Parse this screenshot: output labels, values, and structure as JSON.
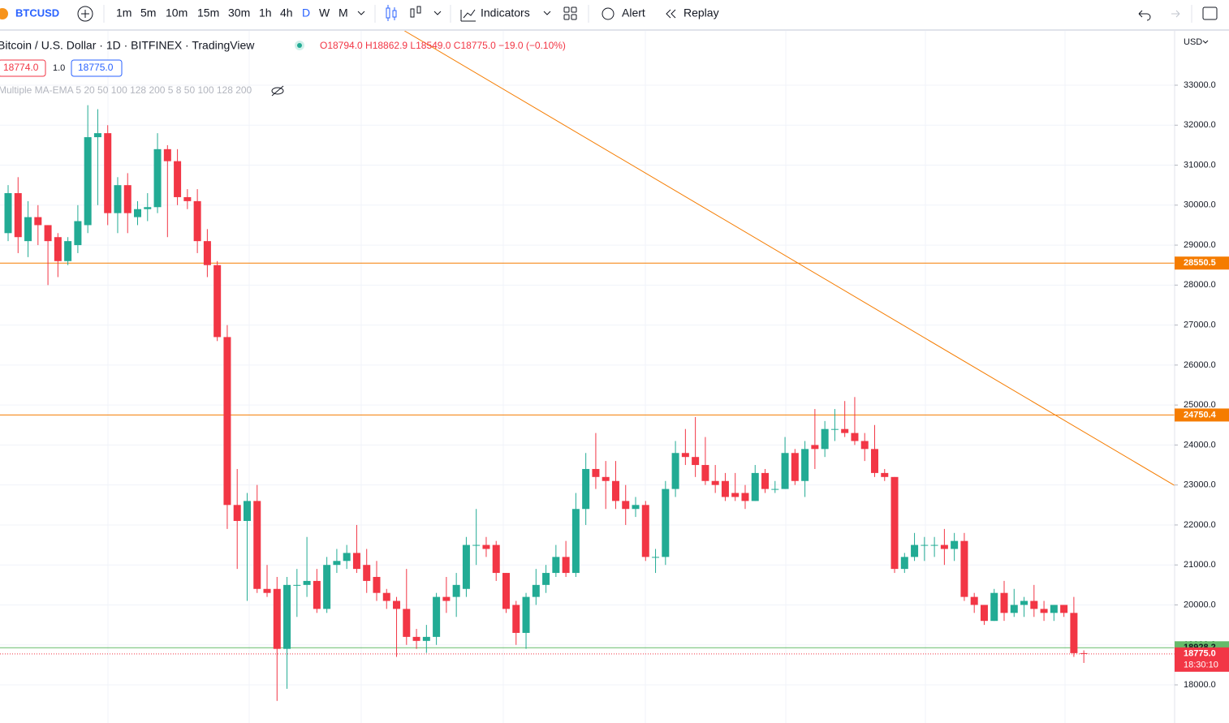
{
  "toolbar": {
    "symbol": "BTCUSD",
    "timeframes": [
      "1m",
      "5m",
      "10m",
      "15m",
      "30m",
      "1h",
      "4h",
      "D",
      "W",
      "M"
    ],
    "active_timeframe": "D",
    "indicators": "Indicators",
    "alert": "Alert",
    "replay": "Replay"
  },
  "chart_data": {
    "type": "candlestick",
    "title": "Bitcoin / U.S. Dollar · 1D · BITFINEX · TradingView",
    "ohlc_text": "O18794.0 H18862.9 L18549.0 C18775.0 −19.0 (−0.10%)",
    "bid": "18774.0",
    "spread": "1.0",
    "ask": "18775.0",
    "indicator": "Multiple MA-EMA 5 20 50 100 128 200 5 8 50 100 128 200",
    "currency": "USD",
    "up_color": "#22ab94",
    "down_color": "#f23645",
    "ylim": [
      17168,
      34360
    ],
    "yticks": [
      {
        "value": 18000,
        "label": "18000.0"
      },
      {
        "value": 19000,
        "label": "19000.0"
      },
      {
        "value": 20000,
        "label": "20000.0"
      },
      {
        "value": 21000,
        "label": "21000.0"
      },
      {
        "value": 22000,
        "label": "22000.0"
      },
      {
        "value": 23000,
        "label": "23000.0"
      },
      {
        "value": 24000,
        "label": "24000.0"
      },
      {
        "value": 25000,
        "label": "25000.0"
      },
      {
        "value": 26000,
        "label": "26000.0"
      },
      {
        "value": 27000,
        "label": "27000.0"
      },
      {
        "value": 28000,
        "label": "28000.0"
      },
      {
        "value": 29000,
        "label": "29000.0"
      },
      {
        "value": 30000,
        "label": "30000.0"
      },
      {
        "value": 31000,
        "label": "31000.0"
      },
      {
        "value": 32000,
        "label": "32000.0"
      },
      {
        "value": 33000,
        "label": "33000.0"
      }
    ],
    "grid": true,
    "levels": [
      {
        "value": 28550.5,
        "color": "#f57c00"
      },
      {
        "value": 24750.4,
        "color": "#f57c00"
      },
      {
        "value": 18928.2,
        "color": "#66bb6a"
      }
    ],
    "last_price": {
      "value": 18775,
      "label": "18775.0",
      "countdown": "18:30:10",
      "color": "#f23645"
    },
    "trendline": {
      "start": [
        39.8,
        34360
      ],
      "end": [
        117.1,
        22990
      ],
      "color": "#f57c00"
    },
    "ohlc": [
      [
        29300,
        30500,
        29100,
        30300
      ],
      [
        30300,
        30700,
        28800,
        29200
      ],
      [
        29100,
        30100,
        28700,
        29700
      ],
      [
        29700,
        30000,
        29000,
        29500
      ],
      [
        29500,
        29500,
        28000,
        29100
      ],
      [
        29200,
        29300,
        28200,
        28600
      ],
      [
        28600,
        29200,
        28500,
        29100
      ],
      [
        29000,
        30000,
        28800,
        29600
      ],
      [
        29500,
        32500,
        29300,
        31700
      ],
      [
        31700,
        32400,
        30000,
        31800
      ],
      [
        31800,
        32000,
        29500,
        29800
      ],
      [
        29800,
        30700,
        29300,
        30500
      ],
      [
        30500,
        30800,
        29300,
        29800
      ],
      [
        29700,
        30100,
        29500,
        29900
      ],
      [
        29900,
        30300,
        29600,
        29950
      ],
      [
        29950,
        31800,
        29800,
        31400
      ],
      [
        31400,
        31500,
        29200,
        31100
      ],
      [
        31100,
        31400,
        30000,
        30200
      ],
      [
        30200,
        30400,
        29900,
        30100
      ],
      [
        30100,
        30400,
        28800,
        29100
      ],
      [
        29100,
        29400,
        28200,
        28500
      ],
      [
        28500,
        28600,
        26600,
        26700
      ],
      [
        26700,
        27000,
        21900,
        22500
      ],
      [
        22500,
        23400,
        20900,
        22100
      ],
      [
        22100,
        22800,
        20100,
        22600
      ],
      [
        22600,
        23000,
        20300,
        20400
      ],
      [
        20400,
        21000,
        20200,
        20300
      ],
      [
        20400,
        20700,
        17600,
        18900
      ],
      [
        18900,
        20700,
        17900,
        20500
      ],
      [
        20500,
        20900,
        19700,
        20500
      ],
      [
        20500,
        21700,
        20200,
        20600
      ],
      [
        20600,
        20900,
        19800,
        19900
      ],
      [
        19900,
        21200,
        19800,
        21000
      ],
      [
        21000,
        21400,
        20800,
        21100
      ],
      [
        21100,
        21500,
        20900,
        21300
      ],
      [
        21300,
        22000,
        20800,
        20900
      ],
      [
        21000,
        21400,
        20300,
        20600
      ],
      [
        20700,
        21100,
        20100,
        20300
      ],
      [
        20300,
        20400,
        19900,
        20100
      ],
      [
        20100,
        20200,
        18700,
        19900
      ],
      [
        19900,
        20900,
        19000,
        19200
      ],
      [
        19200,
        19400,
        18900,
        19100
      ],
      [
        19100,
        19500,
        18800,
        19200
      ],
      [
        19200,
        20300,
        19000,
        20200
      ],
      [
        20200,
        20700,
        19800,
        20100
      ],
      [
        20200,
        20800,
        19700,
        20500
      ],
      [
        20400,
        21700,
        20200,
        21500
      ],
      [
        21500,
        22400,
        21000,
        21500
      ],
      [
        21500,
        21700,
        21200,
        21400
      ],
      [
        21500,
        21600,
        20600,
        20800
      ],
      [
        20800,
        20800,
        19800,
        19900
      ],
      [
        20000,
        20100,
        19000,
        19300
      ],
      [
        19300,
        20300,
        18900,
        20200
      ],
      [
        20200,
        20900,
        20000,
        20500
      ],
      [
        20500,
        21000,
        20300,
        20800
      ],
      [
        20800,
        21500,
        20700,
        21200
      ],
      [
        21200,
        21600,
        20700,
        20800
      ],
      [
        20800,
        22800,
        20700,
        22400
      ],
      [
        22400,
        23800,
        22000,
        23400
      ],
      [
        23400,
        24300,
        22900,
        23200
      ],
      [
        23200,
        23600,
        22400,
        23100
      ],
      [
        23100,
        23600,
        22400,
        22600
      ],
      [
        22600,
        23000,
        22000,
        22400
      ],
      [
        22400,
        22700,
        22200,
        22500
      ],
      [
        22500,
        22600,
        21100,
        21200
      ],
      [
        21200,
        21400,
        20800,
        21200
      ],
      [
        21200,
        23100,
        21000,
        22900
      ],
      [
        22900,
        24100,
        22700,
        23800
      ],
      [
        23800,
        24400,
        23500,
        23700
      ],
      [
        23700,
        24700,
        23200,
        23500
      ],
      [
        23500,
        24200,
        23000,
        23100
      ],
      [
        23100,
        23500,
        22800,
        23000
      ],
      [
        23100,
        23300,
        22600,
        22700
      ],
      [
        22800,
        23300,
        22600,
        22700
      ],
      [
        22800,
        23000,
        22400,
        22600
      ],
      [
        22600,
        23500,
        22600,
        23300
      ],
      [
        23300,
        23400,
        22800,
        22900
      ],
      [
        22900,
        23100,
        22800,
        22900
      ],
      [
        22900,
        24200,
        22900,
        23800
      ],
      [
        23800,
        23900,
        23000,
        23100
      ],
      [
        23100,
        24100,
        22700,
        23900
      ],
      [
        24000,
        24900,
        23400,
        23900
      ],
      [
        23900,
        24600,
        23700,
        24400
      ],
      [
        24400,
        24900,
        24100,
        24400
      ],
      [
        24400,
        25100,
        24200,
        24300
      ],
      [
        24300,
        25200,
        24000,
        24100
      ],
      [
        24100,
        24300,
        23600,
        23900
      ],
      [
        23900,
        24500,
        23200,
        23300
      ],
      [
        23300,
        23400,
        23100,
        23200
      ],
      [
        23200,
        23200,
        20800,
        20900
      ],
      [
        20900,
        21300,
        20800,
        21200
      ],
      [
        21200,
        21800,
        21100,
        21500
      ],
      [
        21500,
        21700,
        21100,
        21500
      ],
      [
        21500,
        21700,
        21200,
        21500
      ],
      [
        21500,
        21900,
        21000,
        21400
      ],
      [
        21400,
        21800,
        21100,
        21600
      ],
      [
        21600,
        21800,
        20100,
        20200
      ],
      [
        20200,
        20300,
        19800,
        20000
      ],
      [
        20000,
        20000,
        19500,
        19600
      ],
      [
        19600,
        20400,
        19600,
        20300
      ],
      [
        20300,
        20600,
        19600,
        19800
      ],
      [
        19800,
        20400,
        19700,
        20000
      ],
      [
        20000,
        20200,
        19700,
        20100
      ],
      [
        20100,
        20500,
        19700,
        19900
      ],
      [
        19900,
        20100,
        19600,
        19800
      ],
      [
        19800,
        20000,
        19600,
        20000
      ],
      [
        20000,
        20000,
        19700,
        19800
      ],
      [
        19800,
        20200,
        18700,
        18794
      ],
      [
        18794,
        18862.9,
        18549,
        18775
      ]
    ]
  }
}
